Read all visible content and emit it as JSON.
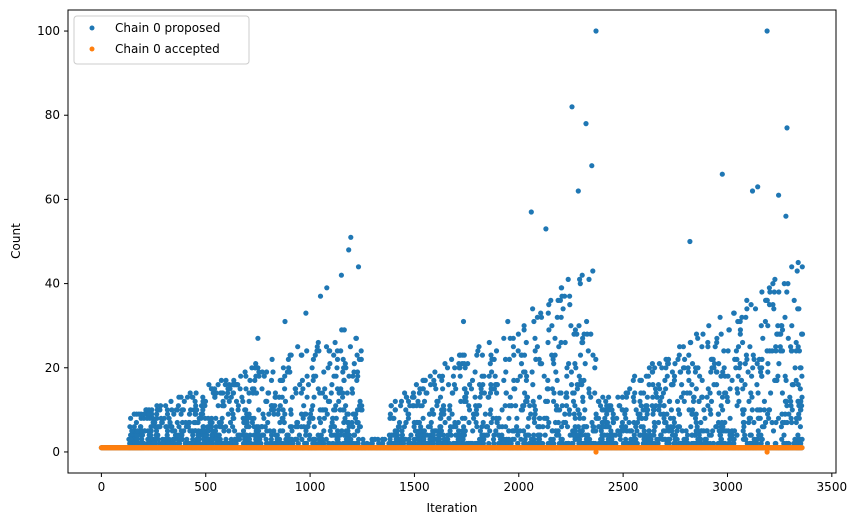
{
  "chart_data": {
    "type": "scatter",
    "title": "",
    "xlabel": "Iteration",
    "ylabel": "Count",
    "xlim": [
      -160,
      3520
    ],
    "ylim": [
      -5,
      105
    ],
    "xticks": [
      0,
      500,
      1000,
      1500,
      2000,
      2500,
      3000,
      3500
    ],
    "yticks": [
      0,
      20,
      40,
      60,
      80,
      100
    ],
    "grid": false,
    "legend_position": "upper-left",
    "n_points": 3360,
    "series": [
      {
        "name": "Chain 0 proposed",
        "color": "#1f77b4",
        "marker": "circle",
        "baseline_value": 1,
        "notable_points": [
          {
            "x": 2255,
            "y": 82
          },
          {
            "x": 2322,
            "y": 78
          },
          {
            "x": 2370,
            "y": 100
          },
          {
            "x": 2350,
            "y": 68
          },
          {
            "x": 2285,
            "y": 62
          },
          {
            "x": 2060,
            "y": 57
          },
          {
            "x": 2130,
            "y": 53
          },
          {
            "x": 1195,
            "y": 51
          },
          {
            "x": 1185,
            "y": 48
          },
          {
            "x": 1232,
            "y": 44
          },
          {
            "x": 1150,
            "y": 42
          },
          {
            "x": 1080,
            "y": 39
          },
          {
            "x": 1050,
            "y": 37
          },
          {
            "x": 3190,
            "y": 100
          },
          {
            "x": 3285,
            "y": 77
          },
          {
            "x": 2975,
            "y": 66
          },
          {
            "x": 3120,
            "y": 62
          },
          {
            "x": 3145,
            "y": 63
          },
          {
            "x": 3245,
            "y": 61
          },
          {
            "x": 3280,
            "y": 56
          },
          {
            "x": 2820,
            "y": 50
          },
          {
            "x": 750,
            "y": 27
          },
          {
            "x": 1735,
            "y": 31
          },
          {
            "x": 980,
            "y": 33
          },
          {
            "x": 880,
            "y": 31
          }
        ],
        "regions": [
          {
            "x_range": [
              130,
              1250
            ],
            "peak_max": 30,
            "growth": "increasing"
          },
          {
            "x_range": [
              1250,
              1380
            ],
            "peak_max": 2,
            "growth": "flat"
          },
          {
            "x_range": [
              1380,
              2380
            ],
            "peak_max": 45,
            "growth": "increasing"
          },
          {
            "x_range": [
              2380,
              3360
            ],
            "peak_max": 45,
            "growth": "increasing"
          }
        ]
      },
      {
        "name": "Chain 0 accepted",
        "color": "#ff7f0e",
        "marker": "circle",
        "baseline_value": 1,
        "notable_points": [
          {
            "x": 2370,
            "y": 0
          },
          {
            "x": 3190,
            "y": 0
          }
        ]
      }
    ]
  }
}
